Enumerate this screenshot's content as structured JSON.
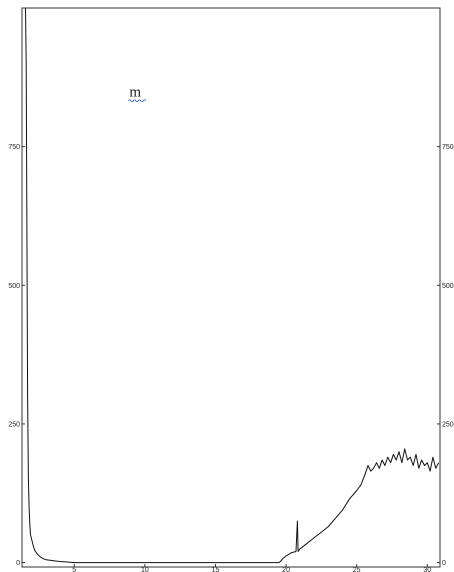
{
  "chart_data": {
    "type": "line",
    "title": "",
    "xlabel": "",
    "ylabel": "",
    "xlim": [
      1.3,
      30.9
    ],
    "ylim": [
      -8,
      1000
    ],
    "x_ticks": [
      {
        "value": 5,
        "label": "5"
      },
      {
        "value": 10,
        "label": "10"
      },
      {
        "value": 15,
        "label": "15"
      },
      {
        "value": 20,
        "label": "20"
      },
      {
        "value": 25,
        "label": "25"
      },
      {
        "value": 30,
        "label": "30"
      }
    ],
    "y_ticks": [
      {
        "value": 0,
        "label": "0"
      },
      {
        "value": 250,
        "label": "250"
      },
      {
        "value": 500,
        "label": "500"
      },
      {
        "value": 750,
        "label": "750"
      }
    ],
    "annotation": {
      "text": "m",
      "x": 8.9,
      "y": 840
    },
    "grid": false,
    "legend": "none",
    "line_color": "#111111",
    "series": [
      {
        "x": [
          1.55,
          1.6,
          1.65,
          1.7,
          1.75,
          1.8,
          1.85,
          1.9,
          2.0,
          2.1,
          2.2,
          2.4,
          2.6,
          2.8,
          3.0,
          3.3,
          3.6,
          4.0,
          4.5,
          5.0,
          6.0,
          8.0,
          10.0,
          12.0,
          14.0,
          16.0,
          18.0,
          19.5,
          19.6,
          19.8,
          20.0,
          20.4,
          20.7,
          20.8,
          20.85,
          20.9,
          21.0,
          21.5,
          22.0,
          22.5,
          23.0,
          23.5,
          24.0,
          24.5,
          25.0,
          25.3,
          25.6,
          25.8,
          26.0,
          26.2,
          26.4,
          26.6,
          26.8,
          27.0,
          27.2,
          27.4,
          27.6,
          27.8,
          28.0,
          28.2,
          28.4,
          28.6,
          28.8,
          29.0,
          29.2,
          29.4,
          29.6,
          29.8,
          30.0,
          30.2,
          30.4,
          30.6,
          30.8
        ],
        "y": [
          1000,
          900,
          600,
          300,
          150,
          100,
          70,
          50,
          40,
          30,
          22,
          15,
          10,
          7,
          5,
          4,
          3,
          2,
          1,
          0,
          0,
          0,
          0,
          0,
          0,
          0,
          0,
          0,
          2,
          8,
          12,
          18,
          20,
          75,
          20,
          22,
          25,
          35,
          45,
          55,
          65,
          80,
          95,
          115,
          130,
          140,
          160,
          175,
          165,
          170,
          180,
          170,
          185,
          175,
          190,
          180,
          195,
          185,
          200,
          180,
          205,
          185,
          190,
          175,
          195,
          170,
          185,
          175,
          180,
          165,
          190,
          170,
          180
        ]
      }
    ]
  }
}
